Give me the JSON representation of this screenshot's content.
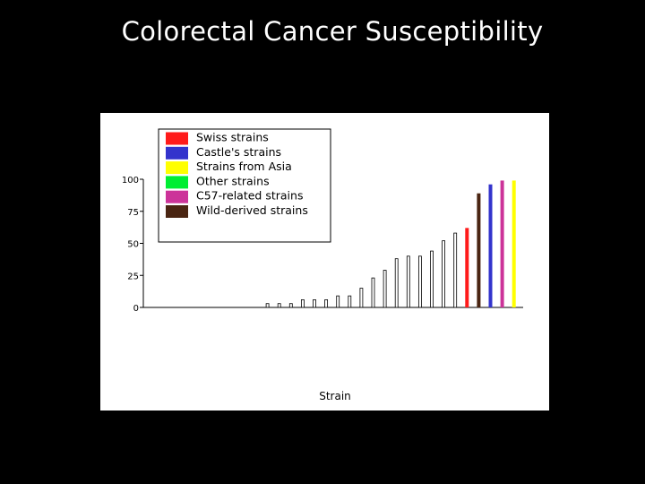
{
  "slide": {
    "title": "Colorectal Cancer Susceptibility",
    "background": "#000000"
  },
  "chart_data": {
    "type": "bar",
    "title": "",
    "xlabel": "Strain",
    "ylabel": "",
    "ylim": [
      0,
      100
    ],
    "yticks": [
      0,
      25,
      50,
      75,
      100
    ],
    "grid": false,
    "legend_position": "top-left",
    "legend": [
      {
        "label": "Swiss strains",
        "color": "#ff1a1a"
      },
      {
        "label": "Castle's strains",
        "color": "#3333cc"
      },
      {
        "label": "Strains from Asia",
        "color": "#ffff00"
      },
      {
        "label": "Other strains",
        "color": "#00ee33"
      },
      {
        "label": "C57-related strains",
        "color": "#cc3399"
      },
      {
        "label": "Wild-derived strains",
        "color": "#4a2512"
      }
    ],
    "bars": [
      {
        "value": 0,
        "group": "Other strains"
      },
      {
        "value": 0,
        "group": "Other strains"
      },
      {
        "value": 0,
        "group": "Other strains"
      },
      {
        "value": 0,
        "group": "Other strains"
      },
      {
        "value": 0,
        "group": "Other strains"
      },
      {
        "value": 0,
        "group": "Other strains"
      },
      {
        "value": 0,
        "group": "Other strains"
      },
      {
        "value": 0,
        "group": "Other strains"
      },
      {
        "value": 0,
        "group": "Other strains"
      },
      {
        "value": 0,
        "group": "Other strains"
      },
      {
        "value": 0,
        "group": "Other strains"
      },
      {
        "value": 3,
        "group": "Other strains"
      },
      {
        "value": 3,
        "group": "Other strains"
      },
      {
        "value": 3,
        "group": "Other strains"
      },
      {
        "value": 6,
        "group": "Other strains"
      },
      {
        "value": 6,
        "group": "Other strains"
      },
      {
        "value": 6,
        "group": "Other strains"
      },
      {
        "value": 9,
        "group": "Other strains"
      },
      {
        "value": 9,
        "group": "Other strains"
      },
      {
        "value": 15,
        "group": "Other strains"
      },
      {
        "value": 23,
        "group": "Other strains"
      },
      {
        "value": 29,
        "group": "Other strains"
      },
      {
        "value": 38,
        "group": "Other strains"
      },
      {
        "value": 40,
        "group": "Other strains"
      },
      {
        "value": 40,
        "group": "Other strains"
      },
      {
        "value": 44,
        "group": "Other strains"
      },
      {
        "value": 52,
        "group": "Other strains"
      },
      {
        "value": 58,
        "group": "Other strains"
      },
      {
        "value": 62,
        "group": "Swiss strains"
      },
      {
        "value": 89,
        "group": "Wild-derived strains"
      },
      {
        "value": 96,
        "group": "Castle's strains"
      },
      {
        "value": 99,
        "group": "C57-related strains"
      },
      {
        "value": 99,
        "group": "Strains from Asia"
      }
    ]
  }
}
